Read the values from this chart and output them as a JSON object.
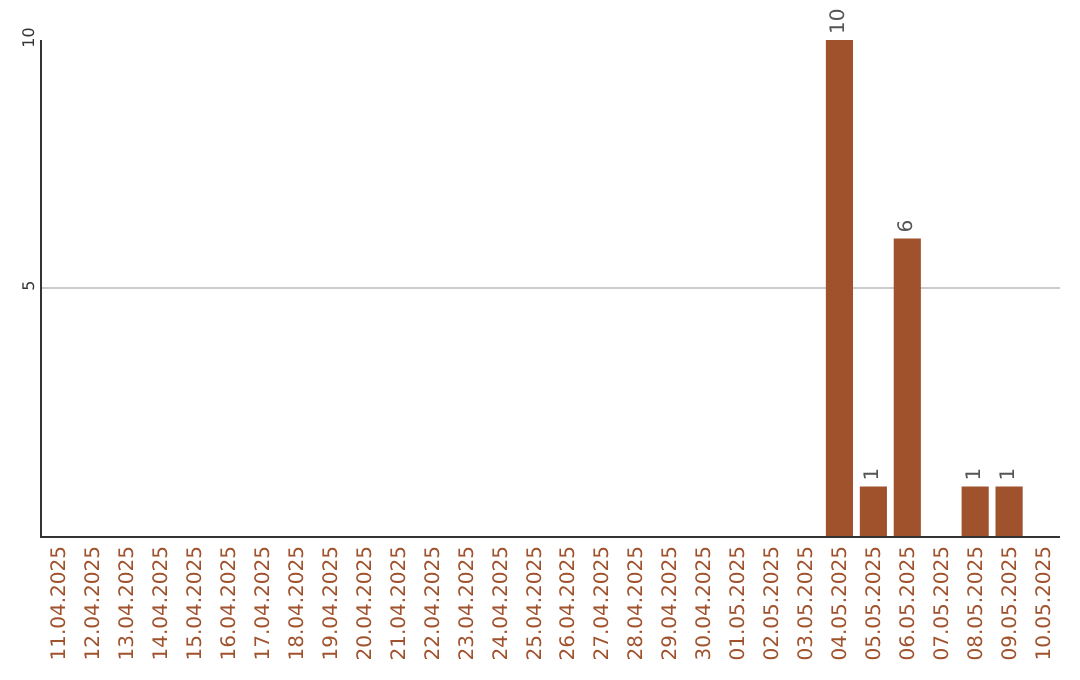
{
  "chart_data": {
    "type": "bar",
    "categories": [
      "11.04.2025",
      "12.04.2025",
      "13.04.2025",
      "14.04.2025",
      "15.04.2025",
      "16.04.2025",
      "17.04.2025",
      "18.04.2025",
      "19.04.2025",
      "20.04.2025",
      "21.04.2025",
      "22.04.2025",
      "23.04.2025",
      "24.04.2025",
      "25.04.2025",
      "26.04.2025",
      "27.04.2025",
      "28.04.2025",
      "29.04.2025",
      "30.04.2025",
      "01.05.2025",
      "02.05.2025",
      "03.05.2025",
      "04.05.2025",
      "05.05.2025",
      "06.05.2025",
      "07.05.2025",
      "08.05.2025",
      "09.05.2025",
      "10.05.2025"
    ],
    "values": [
      0,
      0,
      0,
      0,
      0,
      0,
      0,
      0,
      0,
      0,
      0,
      0,
      0,
      0,
      0,
      0,
      0,
      0,
      0,
      0,
      0,
      0,
      0,
      10,
      1,
      6,
      0,
      1,
      1,
      0
    ],
    "value_labels": [
      null,
      null,
      null,
      null,
      null,
      null,
      null,
      null,
      null,
      null,
      null,
      null,
      null,
      null,
      null,
      null,
      null,
      null,
      null,
      null,
      null,
      null,
      null,
      "10",
      "1",
      "6",
      null,
      "1",
      "1",
      null
    ],
    "color": "#a0522d",
    "ylim": [
      0,
      10
    ],
    "yticks": [
      5,
      10
    ],
    "grid": "y",
    "legend": false
  }
}
